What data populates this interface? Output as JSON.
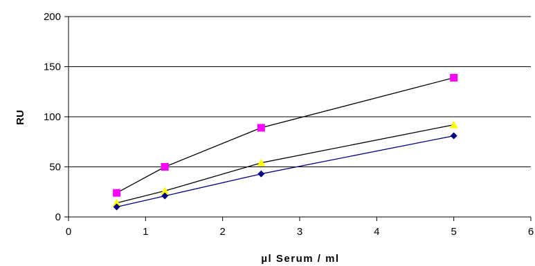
{
  "chart_data": {
    "type": "scatter",
    "xlabel": "µl Serum / ml",
    "ylabel": "RU",
    "xlim": [
      0,
      6
    ],
    "ylim": [
      0,
      200
    ],
    "x_ticks": [
      "0",
      "1",
      "2",
      "3",
      "4",
      "5",
      "6"
    ],
    "y_ticks": [
      "0",
      "50",
      "100",
      "150",
      "200"
    ],
    "grid": "horizontal",
    "legend": "none",
    "series": [
      {
        "marker": "square",
        "marker_color": "#ff00ff",
        "line_color": "#000000",
        "x": [
          0.625,
          1.25,
          2.5,
          5
        ],
        "y": [
          24,
          50,
          89,
          139
        ]
      },
      {
        "marker": "triangle",
        "marker_color": "#ffff00",
        "line_color": "#000000",
        "x": [
          0.625,
          1.25,
          2.5,
          5
        ],
        "y": [
          14,
          26,
          54,
          92
        ]
      },
      {
        "marker": "diamond",
        "marker_color": "#000080",
        "line_color": "#000080",
        "x": [
          0.625,
          1.25,
          2.5,
          5
        ],
        "y": [
          10,
          21,
          43,
          81
        ]
      }
    ]
  }
}
